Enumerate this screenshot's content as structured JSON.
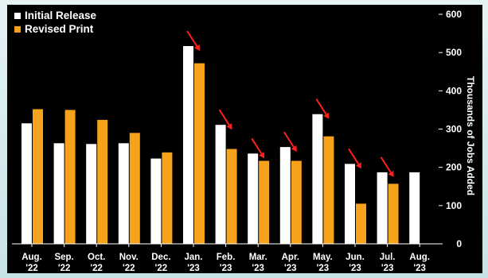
{
  "chart_data": {
    "type": "bar",
    "ylabel": "Thousands of Jobs Added",
    "ylim": [
      0,
      600
    ],
    "yticks": [
      "0",
      "100",
      "200",
      "300",
      "400",
      "500",
      "600"
    ],
    "grid": false,
    "legend_position": "top-left",
    "categories": [
      {
        "month": "Aug.",
        "year": "'22"
      },
      {
        "month": "Sep.",
        "year": "'22"
      },
      {
        "month": "Oct.",
        "year": "'22"
      },
      {
        "month": "Nov.",
        "year": "'22"
      },
      {
        "month": "Dec.",
        "year": "'22"
      },
      {
        "month": "Jan.",
        "year": "'23"
      },
      {
        "month": "Feb.",
        "year": "'23"
      },
      {
        "month": "Mar.",
        "year": "'23"
      },
      {
        "month": "Apr.",
        "year": "'23"
      },
      {
        "month": "May.",
        "year": "'23"
      },
      {
        "month": "Jun.",
        "year": "'23"
      },
      {
        "month": "Jul.",
        "year": "'23"
      },
      {
        "month": "Aug.",
        "year": "'23"
      }
    ],
    "series": [
      {
        "name": "Initial Release",
        "color": "#ffffff",
        "values": [
          315,
          263,
          261,
          263,
          223,
          517,
          311,
          236,
          253,
          339,
          209,
          187,
          187
        ]
      },
      {
        "name": "Revised Print",
        "color": "#f7a21b",
        "values": [
          352,
          350,
          324,
          290,
          239,
          472,
          248,
          217,
          217,
          281,
          105,
          157,
          null
        ]
      }
    ],
    "annotations": {
      "type": "downward-revision-arrows",
      "color": "#ff1f1f",
      "categories": [
        "Jan.",
        "Feb.",
        "Mar.",
        "Apr.",
        "May.",
        "Jun.",
        "Jul."
      ]
    }
  }
}
